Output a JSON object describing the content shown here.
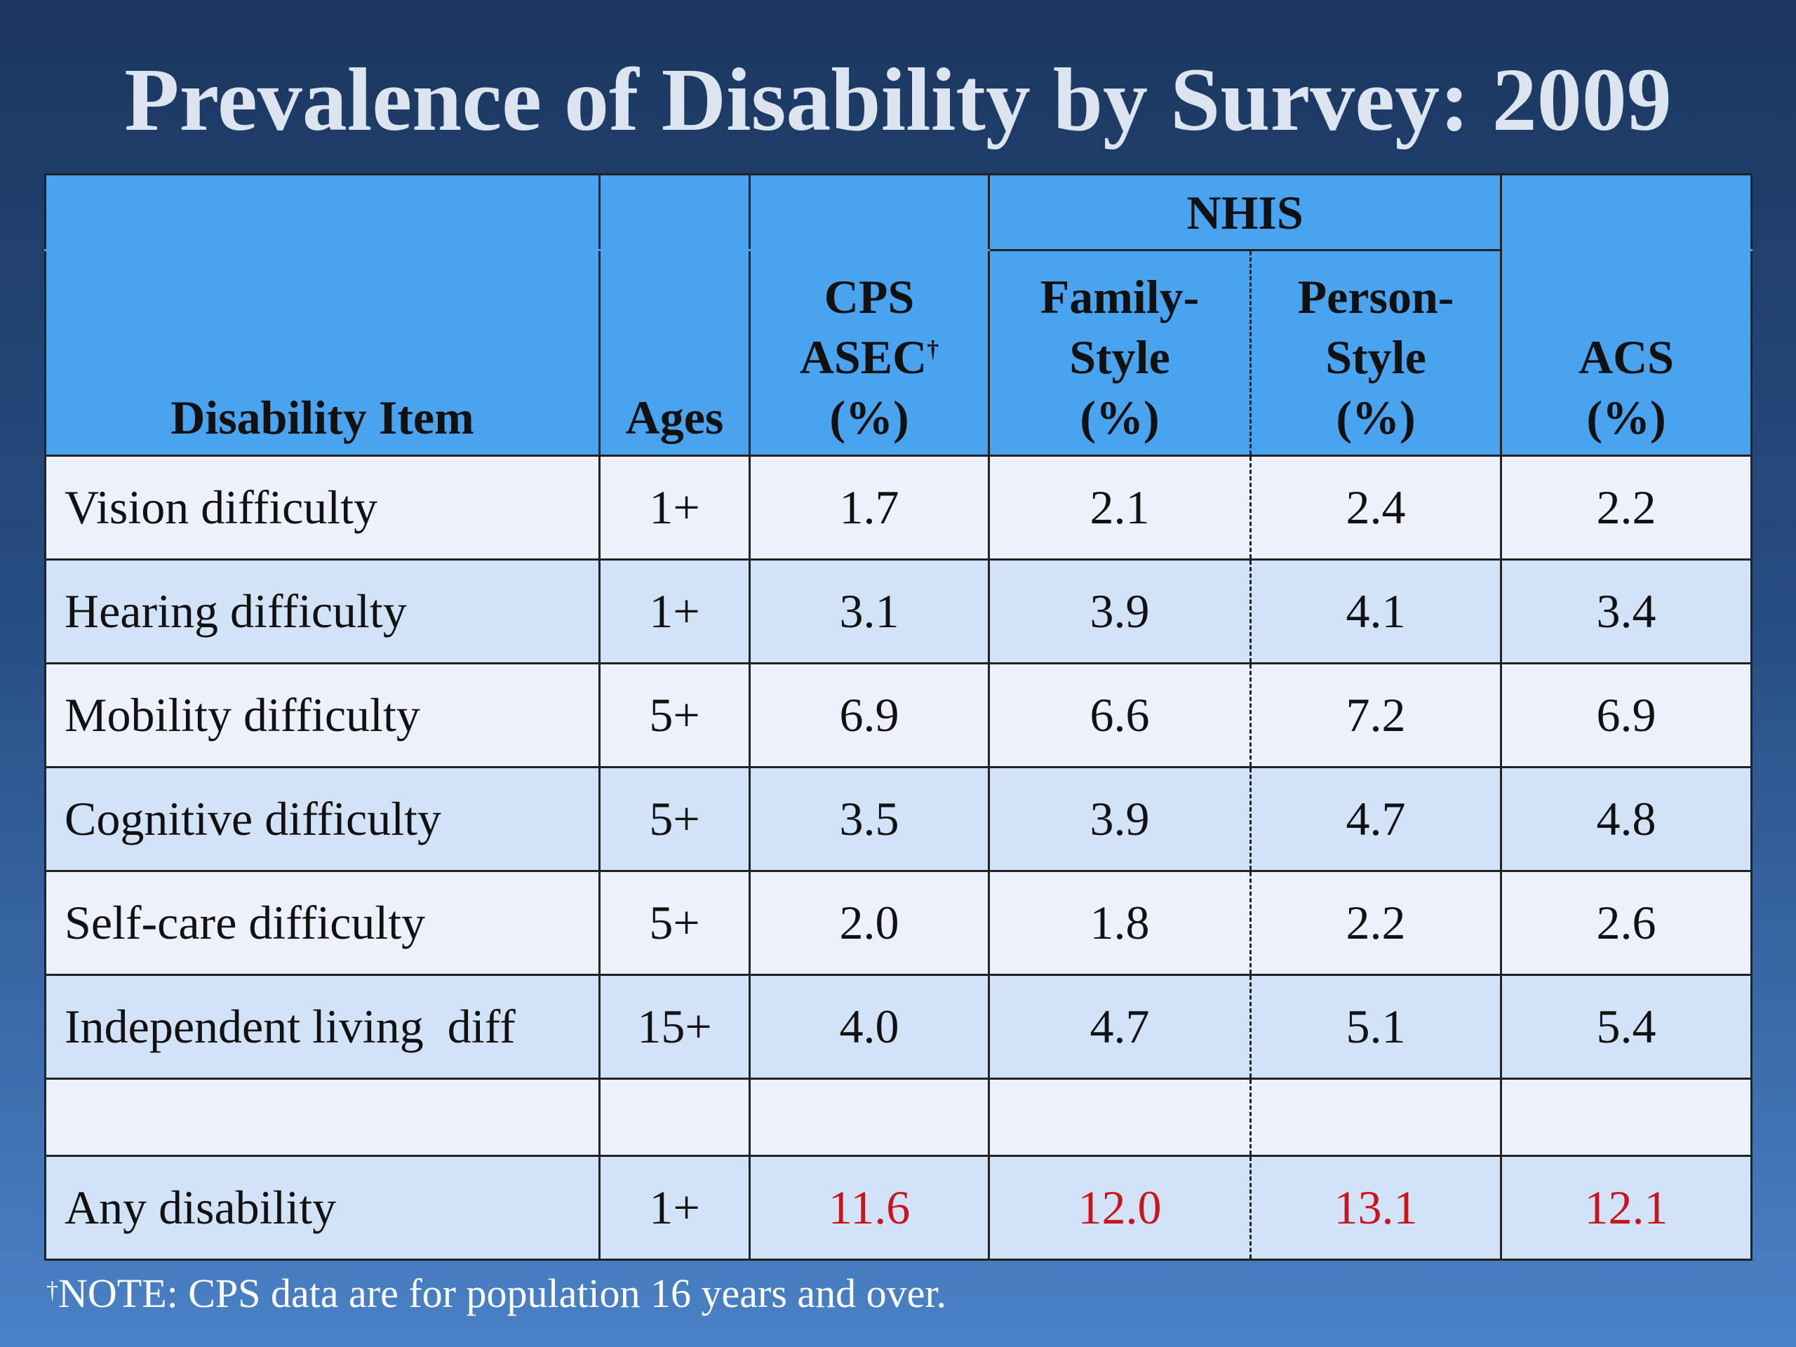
{
  "title": "Prevalence of Disability by Survey: 2009",
  "header": {
    "nhis_group": "NHIS",
    "item": "Disability Item",
    "ages": "Ages",
    "cps": {
      "line1": "CPS",
      "line2": "ASEC",
      "dagger": "†",
      "line3": "(%)"
    },
    "family": {
      "line1": "Family-",
      "line2": "Style",
      "line3": "(%)"
    },
    "person": {
      "line1": "Person-",
      "line2": "Style",
      "line3": "(%)"
    },
    "acs": {
      "line1": "ACS",
      "line2": "(%)"
    }
  },
  "rows": [
    {
      "item": "Vision difficulty",
      "ages": "1+",
      "cps": "1.7",
      "family": "2.1",
      "person": "2.4",
      "acs": "2.2"
    },
    {
      "item": "Hearing difficulty",
      "ages": "1+",
      "cps": "3.1",
      "family": "3.9",
      "person": "4.1",
      "acs": "3.4"
    },
    {
      "item": "Mobility difficulty",
      "ages": "5+",
      "cps": "6.9",
      "family": "6.6",
      "person": "7.2",
      "acs": "6.9"
    },
    {
      "item": "Cognitive difficulty",
      "ages": "5+",
      "cps": "3.5",
      "family": "3.9",
      "person": "4.7",
      "acs": "4.8"
    },
    {
      "item": "Self-care difficulty",
      "ages": "5+",
      "cps": "2.0",
      "family": "1.8",
      "person": "2.2",
      "acs": "2.6"
    },
    {
      "item": "Independent living  diff",
      "ages": "15+",
      "cps": "4.0",
      "family": "4.7",
      "person": "5.1",
      "acs": "5.4"
    }
  ],
  "any": {
    "item": "Any disability",
    "ages": "1+",
    "cps": "11.6",
    "family": "12.0",
    "person": "13.1",
    "acs": "12.1"
  },
  "colors": {
    "highlight_red": "#c8141c",
    "header_blue": "#4aa3ef"
  },
  "note": {
    "dagger": "†",
    "text": "NOTE: CPS data are for population 16 years and over."
  }
}
